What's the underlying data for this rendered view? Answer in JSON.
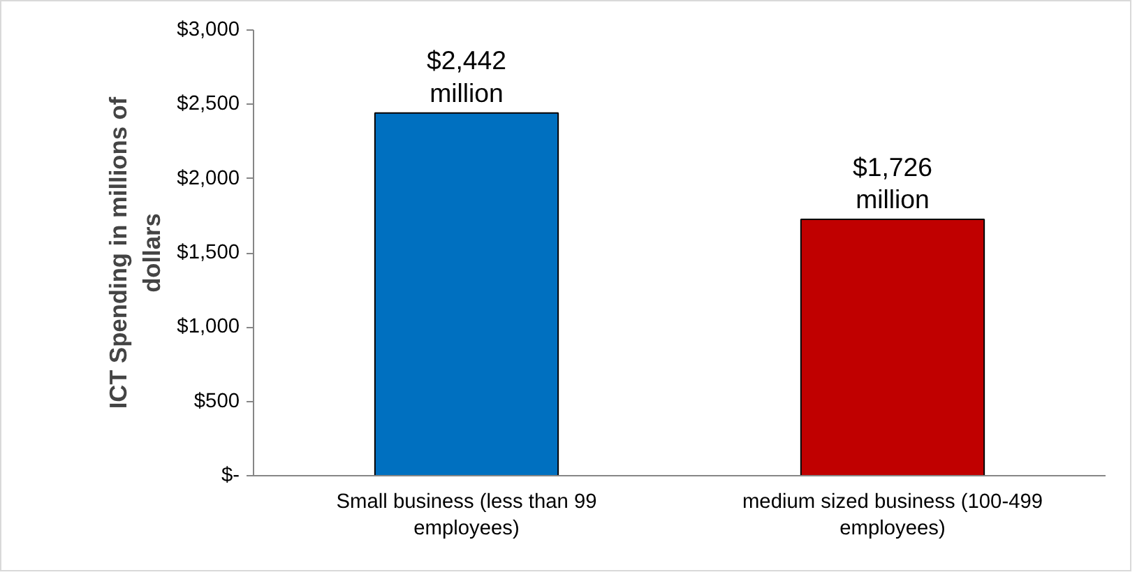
{
  "chart_data": {
    "type": "bar",
    "ylabel": "ICT Spending in millions of dollars",
    "categories": [
      "Small business (less than 99 employees)",
      "medium sized business (100-499 employees)"
    ],
    "values": [
      2442,
      1726
    ],
    "colors": [
      "#0070c0",
      "#c00000"
    ],
    "value_labels": [
      "$2,442 million",
      "$1,726 million"
    ],
    "ylim": [
      0,
      3000
    ],
    "yticks": [
      {
        "value": 0,
        "label": "$-"
      },
      {
        "value": 500,
        "label": "$500"
      },
      {
        "value": 1000,
        "label": "$1,000"
      },
      {
        "value": 1500,
        "label": "$1,500"
      },
      {
        "value": 2000,
        "label": "$2,000"
      },
      {
        "value": 2500,
        "label": "$2,500"
      },
      {
        "value": 3000,
        "label": "$3,000"
      }
    ],
    "grid": false
  }
}
